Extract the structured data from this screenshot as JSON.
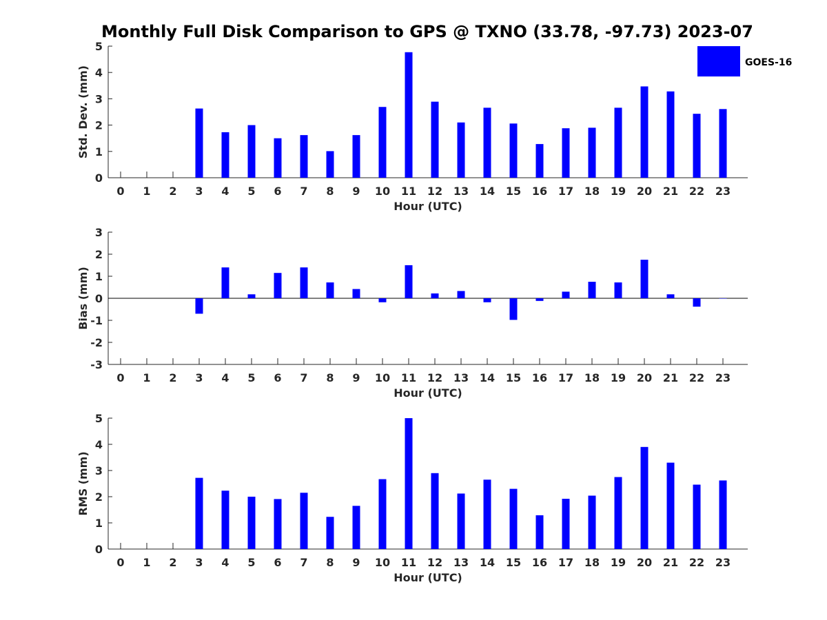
{
  "chart_title": "Monthly Full Disk Comparison to GPS @ TXNO (33.78, -97.73) 2023-07",
  "legend": {
    "label": "GOES-16",
    "color": "#0000ff"
  },
  "chart_data": [
    {
      "type": "bar",
      "title": "Monthly Full Disk Comparison to GPS @ TXNO (33.78, -97.73) 2023-07",
      "xlabel": "Hour (UTC)",
      "ylabel": "Std. Dev. (mm)",
      "ylim": [
        0,
        5
      ],
      "yticks": [
        0,
        1,
        2,
        3,
        4,
        5
      ],
      "categories": [
        "0",
        "1",
        "2",
        "3",
        "4",
        "5",
        "6",
        "7",
        "8",
        "9",
        "10",
        "11",
        "12",
        "13",
        "14",
        "15",
        "16",
        "17",
        "18",
        "19",
        "20",
        "21",
        "22",
        "23"
      ],
      "series": [
        {
          "name": "GOES-16",
          "color": "#0000ff",
          "values": [
            null,
            null,
            null,
            2.63,
            1.73,
            2.0,
            1.5,
            1.62,
            1.01,
            1.62,
            2.69,
            4.77,
            2.89,
            2.1,
            2.66,
            2.06,
            1.28,
            1.88,
            1.9,
            2.66,
            3.47,
            3.28,
            2.43,
            2.61
          ]
        }
      ]
    },
    {
      "type": "bar",
      "xlabel": "Hour (UTC)",
      "ylabel": "Bias (mm)",
      "ylim": [
        -3,
        3
      ],
      "yticks": [
        -3,
        -2,
        -1,
        0,
        1,
        2,
        3
      ],
      "categories": [
        "0",
        "1",
        "2",
        "3",
        "4",
        "5",
        "6",
        "7",
        "8",
        "9",
        "10",
        "11",
        "12",
        "13",
        "14",
        "15",
        "16",
        "17",
        "18",
        "19",
        "20",
        "21",
        "22",
        "23"
      ],
      "series": [
        {
          "name": "GOES-16",
          "color": "#0000ff",
          "values": [
            null,
            null,
            null,
            -0.7,
            1.4,
            0.18,
            1.15,
            1.4,
            0.72,
            0.42,
            -0.18,
            1.5,
            0.22,
            0.33,
            -0.18,
            -0.98,
            -0.12,
            0.3,
            0.75,
            0.72,
            1.75,
            0.18,
            -0.38,
            0.0
          ]
        }
      ]
    },
    {
      "type": "bar",
      "xlabel": "Hour (UTC)",
      "ylabel": "RMS (mm)",
      "ylim": [
        0,
        5
      ],
      "yticks": [
        0,
        1,
        2,
        3,
        4,
        5
      ],
      "categories": [
        "0",
        "1",
        "2",
        "3",
        "4",
        "5",
        "6",
        "7",
        "8",
        "9",
        "10",
        "11",
        "12",
        "13",
        "14",
        "15",
        "16",
        "17",
        "18",
        "19",
        "20",
        "21",
        "22",
        "23"
      ],
      "series": [
        {
          "name": "GOES-16",
          "color": "#0000ff",
          "values": [
            null,
            null,
            null,
            2.72,
            2.23,
            2.0,
            1.91,
            2.15,
            1.23,
            1.65,
            2.67,
            5.0,
            2.9,
            2.12,
            2.65,
            2.3,
            1.29,
            1.92,
            2.04,
            2.75,
            3.9,
            3.3,
            2.46,
            2.62
          ]
        }
      ]
    }
  ]
}
